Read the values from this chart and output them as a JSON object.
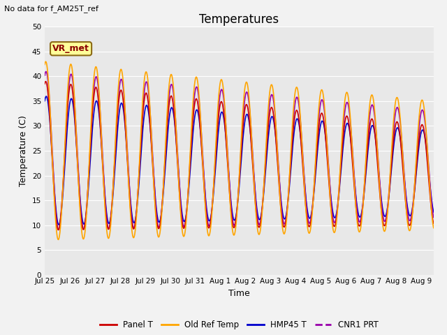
{
  "title": "Temperatures",
  "xlabel": "Time",
  "ylabel": "Temperature (C)",
  "top_left_text": "No data for f_AM25T_ref",
  "annotation_text": "VR_met",
  "ylim": [
    0,
    50
  ],
  "yticks": [
    0,
    5,
    10,
    15,
    20,
    25,
    30,
    35,
    40,
    45,
    50
  ],
  "series": {
    "panel_t": {
      "label": "Panel T",
      "color": "#CC0000",
      "lw": 1.2
    },
    "old_ref": {
      "label": "Old Ref Temp",
      "color": "#FFA500",
      "lw": 1.2
    },
    "hmp45": {
      "label": "HMP45 T",
      "color": "#0000CC",
      "lw": 1.2
    },
    "cnr1": {
      "label": "CNR1 PRT",
      "color": "#9900AA",
      "lw": 1.2
    }
  },
  "tick_labels": [
    "Jul 25",
    "Jul 26",
    "Jul 27",
    "Jul 28",
    "Jul 29",
    "Jul 30",
    "Jul 31",
    "Aug 1",
    "Aug 2",
    "Aug 3",
    "Aug 4",
    "Aug 5",
    "Aug 6",
    "Aug 7",
    "Aug 8",
    "Aug 9"
  ],
  "bg_color": "#E8E8E8",
  "fig_bg": "#F2F2F2"
}
